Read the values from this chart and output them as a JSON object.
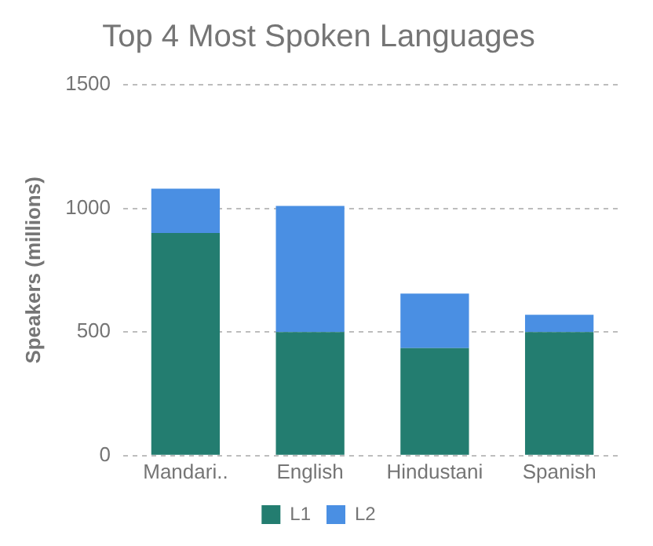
{
  "chart_data": {
    "type": "bar",
    "title": "Top 4 Most Spoken Languages",
    "ylabel": "Speakers (millions)",
    "categories": [
      "Mandari..",
      "English",
      "Hindustani",
      "Spanish"
    ],
    "series": [
      {
        "name": "L1",
        "color": "#237d70",
        "values": [
          900,
          500,
          435,
          500
        ]
      },
      {
        "name": "L2",
        "color": "#4a8fe3",
        "values": [
          180,
          510,
          220,
          70
        ]
      }
    ],
    "stacked": true,
    "ylim": [
      0,
      1500
    ],
    "yticks": [
      0,
      500,
      1000,
      1500
    ],
    "grid": "y",
    "legend": "bottom"
  }
}
